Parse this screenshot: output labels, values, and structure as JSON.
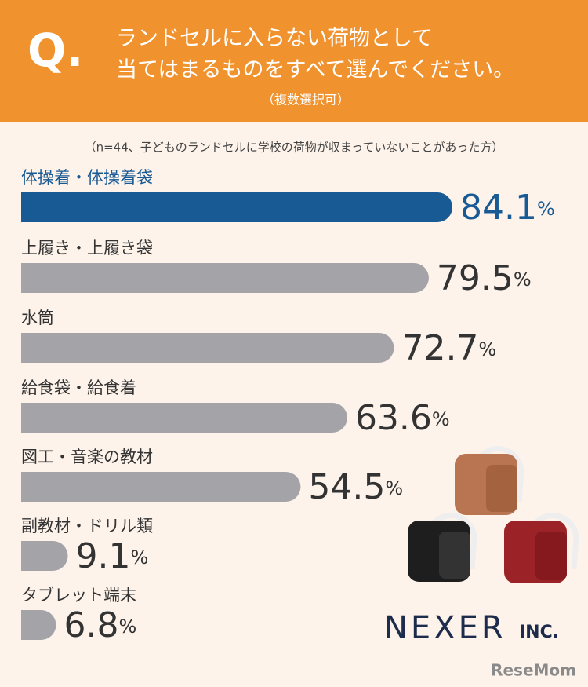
{
  "header": {
    "q": "Q.",
    "question": [
      "ランドセルに入らない荷物として",
      "当てはまるものをすべて選んでください。"
    ],
    "note": "（複数選択可）"
  },
  "chart_data": {
    "type": "bar",
    "orientation": "horizontal",
    "subtitle": "（n=44、子どものランドセルに学校の荷物が収まっていないことがあった方）",
    "categories": [
      "体操着・体操着袋",
      "上履き・上履き袋",
      "水筒",
      "給食袋・給食着",
      "図工・音楽の教材",
      "副教材・ドリル類",
      "タブレット端末"
    ],
    "values": [
      84.1,
      79.5,
      72.7,
      63.6,
      54.5,
      9.1,
      6.8
    ],
    "unit": "%",
    "colors": [
      "#175a94",
      "#a3a3a8",
      "#a3a3a8",
      "#a3a3a8",
      "#a3a3a8",
      "#a3a3a8",
      "#a3a3a8"
    ],
    "label_colors": [
      "#175a94",
      "#333333",
      "#333333",
      "#333333",
      "#333333",
      "#333333",
      "#333333"
    ]
  },
  "footer": {
    "logo_name": "NEXER",
    "logo_suffix": "INC.",
    "watermark": "ReseMom"
  }
}
